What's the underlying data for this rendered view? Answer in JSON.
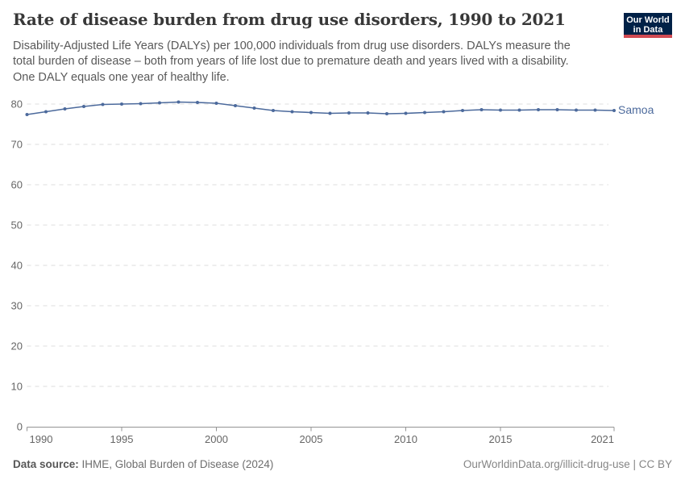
{
  "header": {
    "title": "Rate of disease burden from drug use disorders, 1990 to 2021",
    "subtitle": "Disability-Adjusted Life Years (DALYs) per 100,000 individuals from drug use disorders. DALYs measure the total burden of disease – both from years of life lost due to premature death and years lived with a disability. One DALY equals one year of healthy life.",
    "logo": {
      "line1": "Our World",
      "line2": "in Data",
      "bg_color": "#002147",
      "stripe_color": "#d14a52"
    }
  },
  "chart_data": {
    "type": "line",
    "title": "Rate of disease burden from drug use disorders, 1990 to 2021",
    "xlabel": "",
    "ylabel": "",
    "x": [
      1990,
      1991,
      1992,
      1993,
      1994,
      1995,
      1996,
      1997,
      1998,
      1999,
      2000,
      2001,
      2002,
      2003,
      2004,
      2005,
      2006,
      2007,
      2008,
      2009,
      2010,
      2011,
      2012,
      2013,
      2014,
      2015,
      2016,
      2017,
      2018,
      2019,
      2020,
      2021
    ],
    "series": [
      {
        "name": "Samoa",
        "color": "#4c6a9c",
        "values": [
          77.4,
          78.1,
          78.8,
          79.4,
          79.9,
          80.0,
          80.1,
          80.3,
          80.5,
          80.4,
          80.2,
          79.6,
          79.0,
          78.4,
          78.1,
          77.9,
          77.7,
          77.8,
          77.8,
          77.6,
          77.7,
          77.9,
          78.1,
          78.4,
          78.6,
          78.5,
          78.5,
          78.6,
          78.6,
          78.5,
          78.5,
          78.4
        ]
      }
    ],
    "xticks": [
      1990,
      1995,
      2000,
      2005,
      2010,
      2015,
      2021
    ],
    "yticks": [
      0,
      10,
      20,
      30,
      40,
      50,
      60,
      70,
      80
    ],
    "ylim": [
      0,
      80
    ],
    "xlim": [
      1990,
      2021
    ],
    "grid": "horizontal-dashed",
    "legend_position": "end-of-line",
    "tick_color": "#666666",
    "grid_color": "#dcdcdc",
    "axis_color": "#949494"
  },
  "footer": {
    "source_label": "Data source:",
    "source_text": " IHME, Global Burden of Disease (2024)",
    "link_text": "OurWorldinData.org/illicit-drug-use | CC BY"
  }
}
